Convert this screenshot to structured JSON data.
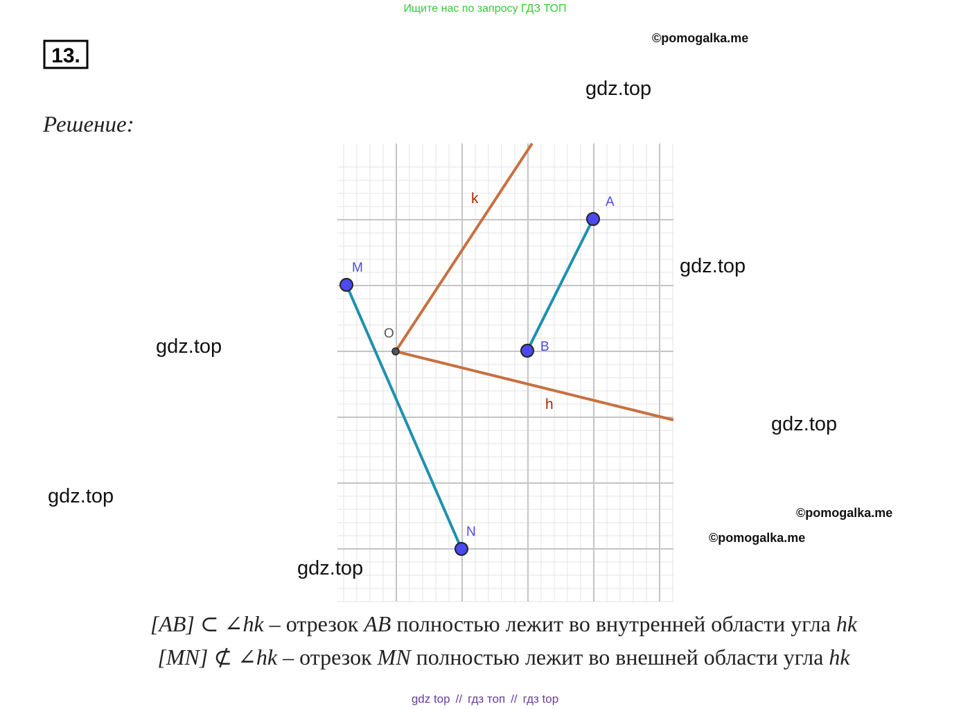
{
  "header": {
    "notice": "Ищите нас по запросу ГДЗ ТОП",
    "number": "13.",
    "solution_label": "Решение:"
  },
  "watermarks": {
    "pomogalka": [
      "©pomogalka.me",
      "©pomogalka.me",
      "©pomogalka.me"
    ],
    "gdz": [
      "gdz.top",
      "gdz.top",
      "gdz.top",
      "gdz.top",
      "gdz.top",
      "gdz.top"
    ]
  },
  "diagram": {
    "points": {
      "M": "M",
      "O": "O",
      "A": "A",
      "B": "B",
      "N": "N"
    },
    "rays": {
      "k": "k",
      "h": "h"
    }
  },
  "statements": [
    [
      "[AB] ⊂ ∠hk",
      " – отрезок ",
      "AB",
      " полностью лежит во внутренней области угла ",
      "hk"
    ],
    [
      "[MN] ⊄ ∠hk",
      " – отрезок ",
      "MN",
      " полностью лежит во внешней области угла ",
      "hk"
    ]
  ],
  "footer": {
    "links": [
      "gdz top",
      "гдз топ",
      "гдз top"
    ],
    "separator": "//"
  }
}
